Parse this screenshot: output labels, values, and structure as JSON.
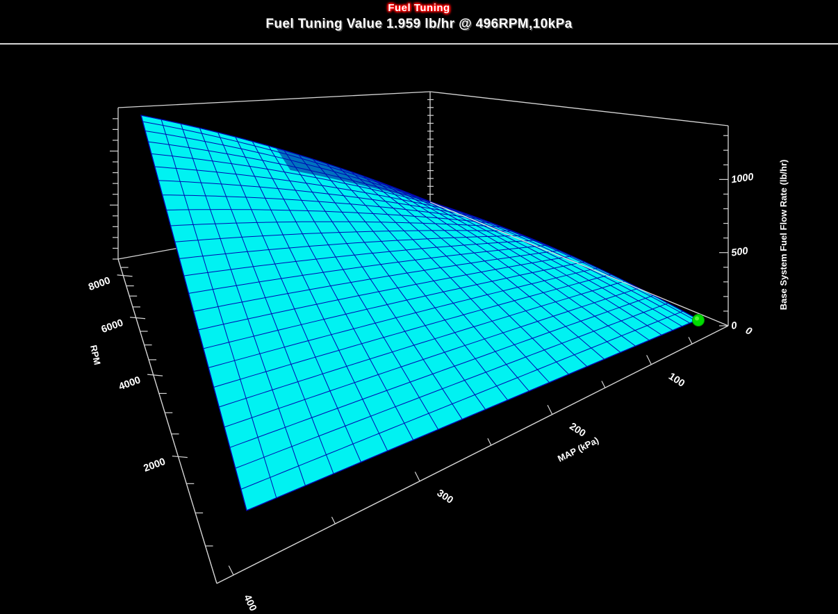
{
  "header": {
    "app_title": "Fuel Tuning",
    "subtitle": "Fuel Tuning Value 1.959 lb/hr @ 496RPM,10kPa"
  },
  "chart_data": {
    "type": "surface3d",
    "title": "Fuel Tuning",
    "status_text": "Fuel Tuning Value 1.959 lb/hr @ 496RPM,10kPa",
    "selected_point": {
      "rpm": 496,
      "map_kpa": 10,
      "value_lb_hr": 1.959
    },
    "axes": {
      "rpm": {
        "label": "RPM",
        "major_ticks": [
          2000,
          4000,
          6000,
          8000
        ],
        "minor_step": 500,
        "range": [
          0,
          9000
        ]
      },
      "map": {
        "label": "MAP (kPa)",
        "major_ticks": [
          0,
          100,
          200,
          300,
          400
        ],
        "minor_step": 50,
        "range": [
          0,
          420
        ]
      },
      "flow": {
        "label": "Base System Fuel Flow Rate (lb/hr)",
        "major_ticks": [
          0,
          500,
          1000
        ],
        "minor_step": 100,
        "range": [
          0,
          1400
        ]
      }
    },
    "surface": {
      "grid_rows": 25,
      "grid_cols": 25,
      "model": "flow_lb_hr ~= 0.000372 * RPM * MAP",
      "peak_value_lb_hr": 1340,
      "peak_at": {
        "rpm": 9000,
        "map_kpa": 400
      },
      "min_value_lb_hr": 0,
      "min_at": {
        "rpm": 500,
        "map_kpa": 0
      }
    },
    "legend": "none",
    "grid": "mesh on surface only",
    "colors": {
      "background": "#000000",
      "surface_fill": "#00F2F2",
      "mesh_line": "#0008B0",
      "frame_line": "#D6D6D6",
      "marker_green": "#00DC00",
      "label_text": "#FFFFFF",
      "title_glow": "#FF0000"
    }
  }
}
